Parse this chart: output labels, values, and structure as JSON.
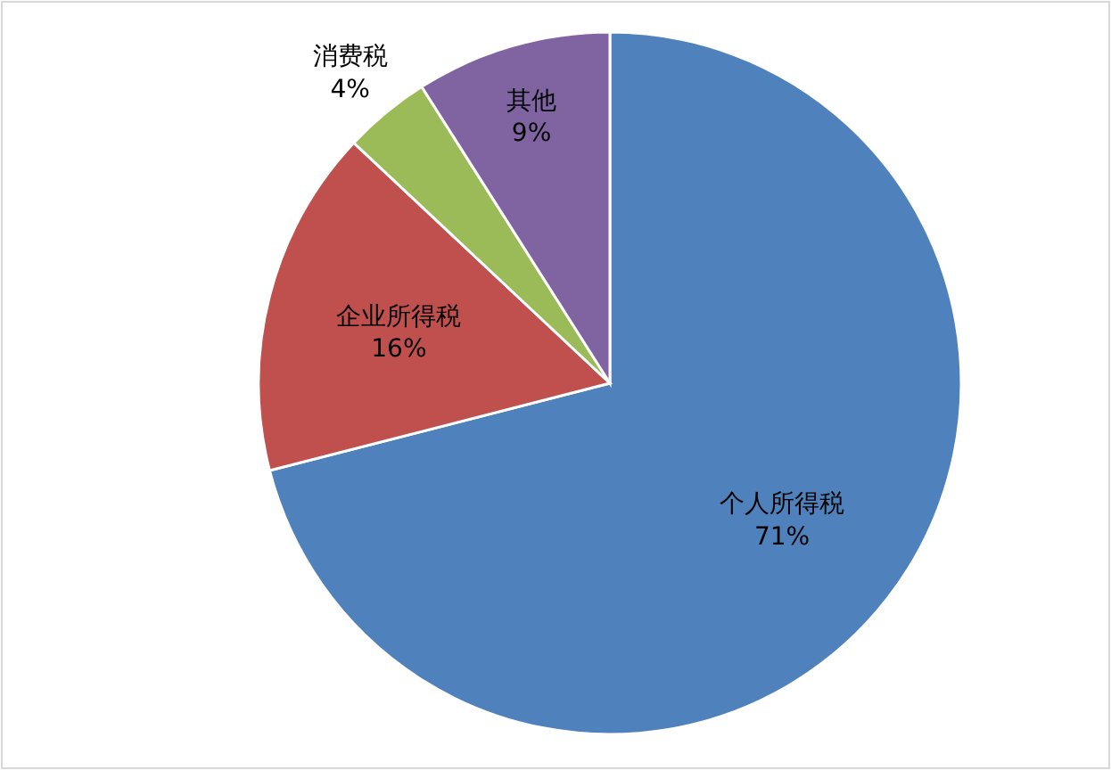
{
  "chart_data": {
    "type": "pie",
    "categories": [
      "个人所得税",
      "企业所得税",
      "消费税",
      "其他"
    ],
    "values": [
      71,
      16,
      4,
      9
    ],
    "value_labels": [
      "71%",
      "16%",
      "4%",
      "9%"
    ],
    "colors": [
      "#4f81bd",
      "#c0504d",
      "#9bbb59",
      "#8064a2"
    ],
    "legend": false
  }
}
